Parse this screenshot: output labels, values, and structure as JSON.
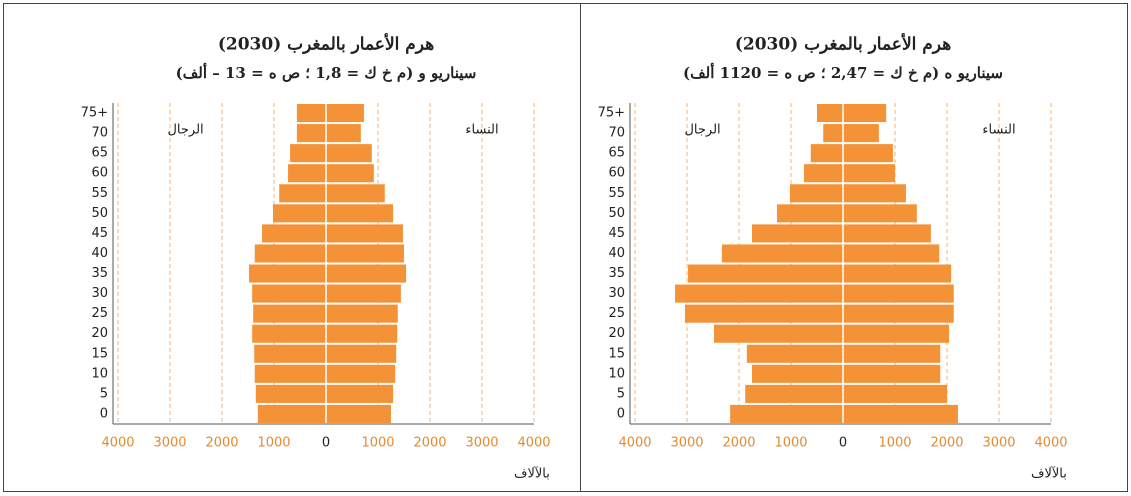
{
  "chart_data": [
    {
      "type": "pyramid",
      "title": "هرم الأعمار بالمغرب (2030)",
      "subtitle": "سيناريو و (م خ ك = 1,8 ؛ ص ه = 13 – ألف)",
      "xlabel": "بالآلاف",
      "categories": [
        "0",
        "5",
        "10",
        "15",
        "20",
        "25",
        "30",
        "35",
        "40",
        "45",
        "50",
        "55",
        "60",
        "65",
        "70",
        "75+"
      ],
      "series": [
        {
          "name": "الرجال",
          "color": "#f39237",
          "values": [
            -1310,
            -1350,
            -1370,
            -1380,
            -1420,
            -1400,
            -1420,
            -1480,
            -1370,
            -1230,
            -1020,
            -900,
            -730,
            -690,
            -560,
            -560
          ]
        },
        {
          "name": "النساء",
          "color": "#f39237",
          "values": [
            1250,
            1290,
            1330,
            1350,
            1370,
            1380,
            1440,
            1540,
            1500,
            1480,
            1290,
            1130,
            920,
            880,
            670,
            730
          ]
        }
      ],
      "xlim": [
        -4000,
        4000
      ],
      "xticks": [
        {
          "value": -4000,
          "label": "4000"
        },
        {
          "value": -3000,
          "label": "3000"
        },
        {
          "value": -2000,
          "label": "2000"
        },
        {
          "value": -1000,
          "label": "1000"
        },
        0,
        1000,
        2000,
        3000,
        4000
      ],
      "grid": true
    },
    {
      "type": "pyramid",
      "title": "هرم الأعمار بالمغرب (2030)",
      "subtitle": "سيناريو ه (م خ ك = 2,47 ؛ ص ه = 1120 ألف)",
      "xlabel": "بالآلاف",
      "categories": [
        "0",
        "5",
        "10",
        "15",
        "20",
        "25",
        "30",
        "35",
        "40",
        "45",
        "50",
        "55",
        "60",
        "65",
        "70",
        "75+"
      ],
      "series": [
        {
          "name": "الرجال",
          "color": "#f39237",
          "values": [
            -2170,
            -1880,
            -1750,
            -1850,
            -2480,
            -3040,
            -3230,
            -2980,
            -2330,
            -1750,
            -1270,
            -1020,
            -750,
            -620,
            -380,
            -500
          ]
        },
        {
          "name": "النساء",
          "color": "#f39237",
          "values": [
            2210,
            2000,
            1870,
            1870,
            2040,
            2130,
            2130,
            2080,
            1850,
            1690,
            1420,
            1210,
            1000,
            960,
            690,
            830
          ]
        }
      ],
      "xlim": [
        -4000,
        4000
      ],
      "xticks": [
        {
          "value": -4000,
          "label": "4000"
        },
        {
          "value": -3000,
          "label": "3000"
        },
        {
          "value": -2000,
          "label": "2000"
        },
        {
          "value": -1000,
          "label": "1000"
        },
        0,
        1000,
        2000,
        3000,
        4000
      ],
      "grid": true
    }
  ]
}
